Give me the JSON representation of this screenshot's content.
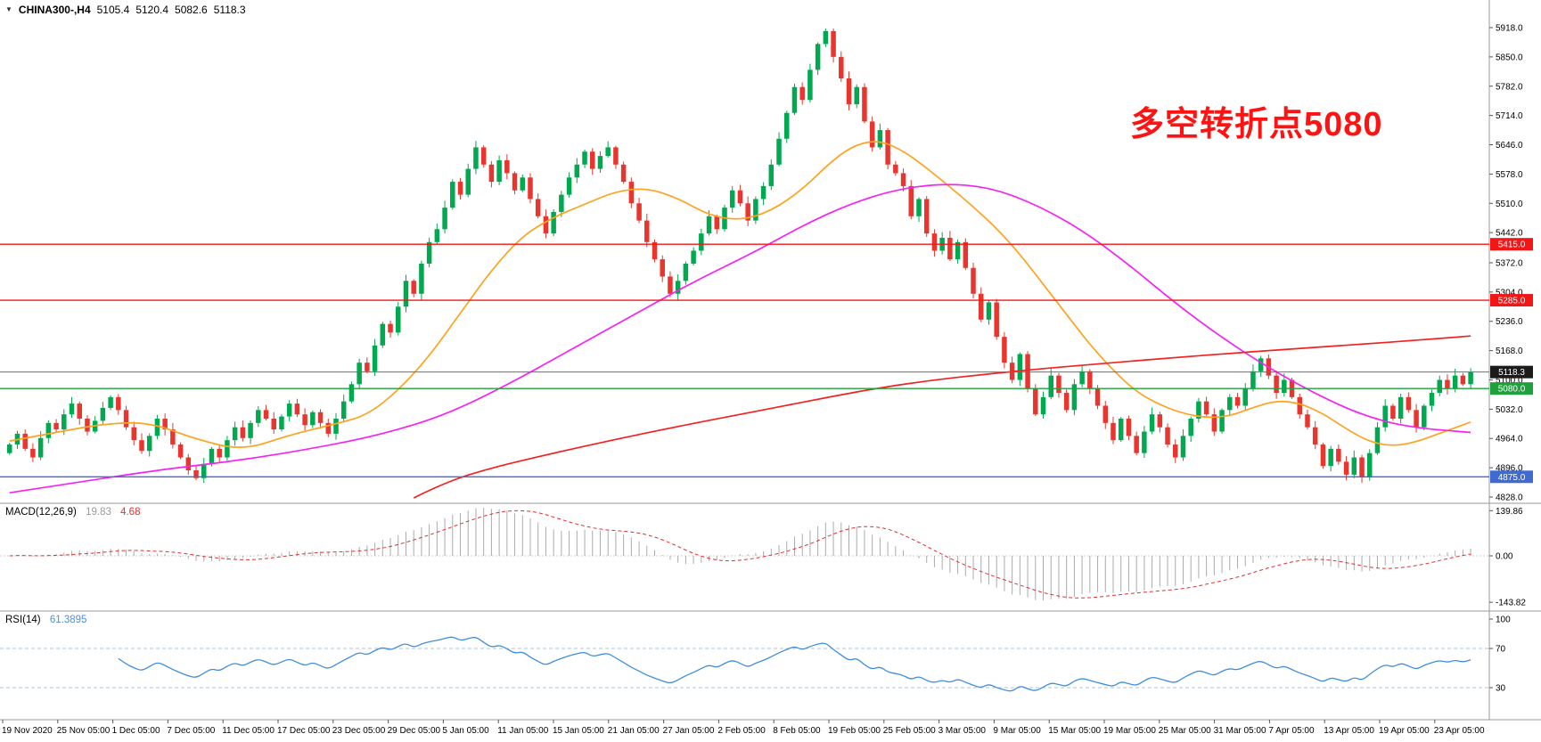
{
  "header": {
    "dropdown_icon": "▼",
    "symbol": "CHINA300-,H4",
    "open": "5105.4",
    "high": "5120.4",
    "low": "5082.6",
    "close": "5118.3"
  },
  "annotation": {
    "text": "多空转折点5080",
    "color": "#ff1212"
  },
  "indicators": {
    "macd": {
      "label": "MACD(12,26,9)",
      "value_main": "19.83",
      "value_signal": "4.68",
      "scale_labels": [
        "139.86",
        "0.00",
        "-143.82"
      ]
    },
    "rsi": {
      "label": "RSI(14)",
      "value": "61.3895",
      "scale_labels": [
        "100",
        "70",
        "30"
      ],
      "levels": [
        70,
        30
      ]
    }
  },
  "price_scale": {
    "tick_labels": [
      "5918.0",
      "5850.0",
      "5782.0",
      "5714.0",
      "5646.0",
      "5578.0",
      "5510.0",
      "5442.0",
      "5372.0",
      "5304.0",
      "5236.0",
      "5168.0",
      "5100.0",
      "5032.0",
      "4964.0",
      "4896.0",
      "4828.0"
    ],
    "min": 4828,
    "max": 5918
  },
  "time_axis": {
    "labels": [
      "19 Nov 2020",
      "25 Nov 05:00",
      "1 Dec 05:00",
      "7 Dec 05:00",
      "11 Dec 05:00",
      "17 Dec 05:00",
      "23 Dec 05:00",
      "29 Dec 05:00",
      "5 Jan 05:00",
      "11 Jan 05:00",
      "15 Jan 05:00",
      "21 Jan 05:00",
      "27 Jan 05:00",
      "2 Feb 05:00",
      "8 Feb 05:00",
      "19 Feb 05:00",
      "25 Feb 05:00",
      "3 Mar 05:00",
      "9 Mar 05:00",
      "15 Mar 05:00",
      "19 Mar 05:00",
      "25 Mar 05:00",
      "31 Mar 05:00",
      "7 Apr 05:00",
      "13 Apr 05:00",
      "19 Apr 05:00",
      "23 Apr 05:00"
    ]
  },
  "price_levels": [
    {
      "value": 5415.0,
      "label": "5415.0",
      "color": "#f21616",
      "kind": "resistance"
    },
    {
      "value": 5285.0,
      "label": "5285.0",
      "color": "#f21616",
      "kind": "resistance"
    },
    {
      "value": 5118.3,
      "label": "5118.3",
      "color": "#6e6e6e",
      "badge": "#1b1b1b",
      "kind": "current-price"
    },
    {
      "value": 5080.0,
      "label": "5080.0",
      "color": "#1fa03c",
      "kind": "support"
    },
    {
      "value": 4875.0,
      "label": "4875.0",
      "color": "#3f6ad0",
      "kind": "support"
    }
  ],
  "chart_data": {
    "type": "candlestick",
    "symbol": "CHINA300-",
    "timeframe": "H4",
    "title": "CHINA300- H4 candlestick chart with MA / MACD(12,26,9) / RSI(14)",
    "ylim": [
      4828,
      5918
    ],
    "last_price": 5118.3,
    "open_rule": "previous_close",
    "wick_typical": 14,
    "closes": [
      4950,
      4975,
      4940,
      4920,
      4965,
      5000,
      4985,
      5020,
      5045,
      5010,
      4980,
      5005,
      5035,
      5060,
      5030,
      4990,
      4960,
      4935,
      4970,
      5010,
      4985,
      4950,
      4920,
      4890,
      4872,
      4905,
      4940,
      4920,
      4960,
      4990,
      4965,
      5000,
      5030,
      5010,
      4985,
      5015,
      5045,
      5020,
      4995,
      5025,
      5000,
      4975,
      5010,
      5050,
      5090,
      5140,
      5120,
      5180,
      5230,
      5210,
      5270,
      5330,
      5300,
      5370,
      5420,
      5450,
      5500,
      5560,
      5530,
      5590,
      5640,
      5600,
      5560,
      5610,
      5580,
      5540,
      5570,
      5520,
      5480,
      5440,
      5490,
      5530,
      5570,
      5600,
      5630,
      5590,
      5620,
      5640,
      5600,
      5560,
      5510,
      5470,
      5420,
      5380,
      5340,
      5300,
      5330,
      5370,
      5400,
      5440,
      5480,
      5450,
      5500,
      5540,
      5510,
      5470,
      5520,
      5550,
      5600,
      5660,
      5720,
      5780,
      5750,
      5820,
      5880,
      5910,
      5850,
      5800,
      5740,
      5780,
      5700,
      5640,
      5680,
      5600,
      5580,
      5550,
      5480,
      5520,
      5440,
      5400,
      5430,
      5380,
      5420,
      5360,
      5300,
      5240,
      5280,
      5200,
      5140,
      5100,
      5160,
      5080,
      5020,
      5060,
      5110,
      5070,
      5030,
      5090,
      5120,
      5080,
      5040,
      5000,
      4960,
      5010,
      4970,
      4930,
      4980,
      5020,
      4990,
      4950,
      4920,
      4970,
      5010,
      5050,
      5020,
      4980,
      5030,
      5060,
      5040,
      5080,
      5120,
      5150,
      5110,
      5070,
      5100,
      5060,
      5020,
      4990,
      4950,
      4900,
      4940,
      4910,
      4880,
      4920,
      4875,
      4930,
      4990,
      5040,
      5010,
      5060,
      5030,
      4990,
      5040,
      5070,
      5100,
      5080,
      5110,
      5090,
      5118.3
    ],
    "moving_averages": [
      {
        "name": "ma-fast",
        "color": "#ffa21f",
        "points": [
          [
            0,
            4958
          ],
          [
            6,
            4978
          ],
          [
            12,
            4998
          ],
          [
            18,
            5002
          ],
          [
            24,
            4962
          ],
          [
            30,
            4936
          ],
          [
            36,
            4972
          ],
          [
            42,
            4998
          ],
          [
            46,
            5018
          ],
          [
            50,
            5075
          ],
          [
            54,
            5155
          ],
          [
            58,
            5255
          ],
          [
            62,
            5355
          ],
          [
            66,
            5435
          ],
          [
            70,
            5478
          ],
          [
            74,
            5508
          ],
          [
            78,
            5538
          ],
          [
            82,
            5546
          ],
          [
            86,
            5522
          ],
          [
            90,
            5482
          ],
          [
            94,
            5470
          ],
          [
            98,
            5492
          ],
          [
            102,
            5542
          ],
          [
            106,
            5612
          ],
          [
            109,
            5648
          ],
          [
            112,
            5656
          ],
          [
            115,
            5632
          ],
          [
            118,
            5592
          ],
          [
            121,
            5548
          ],
          [
            124,
            5502
          ],
          [
            127,
            5452
          ],
          [
            130,
            5392
          ],
          [
            133,
            5322
          ],
          [
            136,
            5252
          ],
          [
            139,
            5182
          ],
          [
            142,
            5122
          ],
          [
            145,
            5072
          ],
          [
            148,
            5042
          ],
          [
            151,
            5022
          ],
          [
            154,
            5012
          ],
          [
            157,
            5016
          ],
          [
            160,
            5036
          ],
          [
            163,
            5052
          ],
          [
            166,
            5046
          ],
          [
            169,
            5022
          ],
          [
            172,
            4986
          ],
          [
            175,
            4956
          ],
          [
            178,
            4946
          ],
          [
            181,
            4956
          ],
          [
            184,
            4976
          ],
          [
            188,
            5002
          ]
        ]
      },
      {
        "name": "ma-medium",
        "color": "#f522f5",
        "points": [
          [
            0,
            4838
          ],
          [
            10,
            4866
          ],
          [
            20,
            4893
          ],
          [
            30,
            4914
          ],
          [
            40,
            4944
          ],
          [
            48,
            4974
          ],
          [
            56,
            5018
          ],
          [
            64,
            5088
          ],
          [
            72,
            5168
          ],
          [
            80,
            5248
          ],
          [
            88,
            5328
          ],
          [
            96,
            5398
          ],
          [
            102,
            5458
          ],
          [
            108,
            5508
          ],
          [
            114,
            5542
          ],
          [
            120,
            5556
          ],
          [
            126,
            5548
          ],
          [
            132,
            5508
          ],
          [
            138,
            5448
          ],
          [
            144,
            5368
          ],
          [
            150,
            5278
          ],
          [
            156,
            5198
          ],
          [
            162,
            5128
          ],
          [
            168,
            5068
          ],
          [
            174,
            5018
          ],
          [
            180,
            4990
          ],
          [
            188,
            4978
          ]
        ]
      },
      {
        "name": "ma-slow",
        "color": "#f22222",
        "points": [
          [
            52,
            4826
          ],
          [
            56,
            4862
          ],
          [
            62,
            4896
          ],
          [
            70,
            4930
          ],
          [
            78,
            4962
          ],
          [
            86,
            4992
          ],
          [
            94,
            5020
          ],
          [
            102,
            5048
          ],
          [
            110,
            5076
          ],
          [
            118,
            5098
          ],
          [
            126,
            5114
          ],
          [
            134,
            5128
          ],
          [
            142,
            5140
          ],
          [
            150,
            5152
          ],
          [
            158,
            5163
          ],
          [
            166,
            5173
          ],
          [
            174,
            5183
          ],
          [
            181,
            5192
          ],
          [
            188,
            5202
          ]
        ]
      }
    ],
    "macd_params": [
      12,
      26,
      9
    ],
    "macd_scale": [
      139.86,
      0.0,
      -143.82
    ],
    "rsi_period": 14
  },
  "colors": {
    "background": "#ffffff",
    "up": "#00a84f",
    "down": "#e8352e",
    "macd_hist": "#ababab",
    "macd_signal": "#e03030",
    "macd_zero": "#d0d0d0",
    "rsi": "#3f8ede",
    "rsi_level": "#a8c4dc",
    "separator": "#9a9a9a",
    "axis_text": "#000000",
    "tick_mark": "#555555"
  }
}
